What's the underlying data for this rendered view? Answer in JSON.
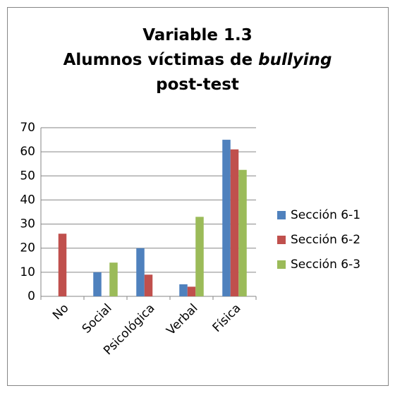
{
  "chart_data": {
    "type": "bar",
    "title": [
      [
        {
          "text": "Variable 1.3"
        }
      ],
      [
        {
          "text": "Alumnos víctimas de "
        },
        {
          "text": "bullying",
          "italic": true
        }
      ],
      [
        {
          "text": "post-test"
        }
      ]
    ],
    "categories": [
      "No",
      "Social",
      "Psicológica",
      "Verbal",
      "Física"
    ],
    "series": [
      {
        "name": "Sección 6-1",
        "color": "#4f81bd",
        "values": [
          0,
          10,
          20,
          5,
          65
        ]
      },
      {
        "name": "Sección 6-2",
        "color": "#c0504d",
        "values": [
          26,
          0,
          9,
          4,
          61
        ]
      },
      {
        "name": "Sección 6-3",
        "color": "#9bbb59",
        "values": [
          0,
          14,
          0,
          33,
          52.5
        ]
      }
    ],
    "ylim": [
      0,
      70
    ],
    "yticks": [
      0,
      10,
      20,
      30,
      40,
      50,
      60,
      70
    ],
    "grid": true,
    "legend": "right"
  }
}
